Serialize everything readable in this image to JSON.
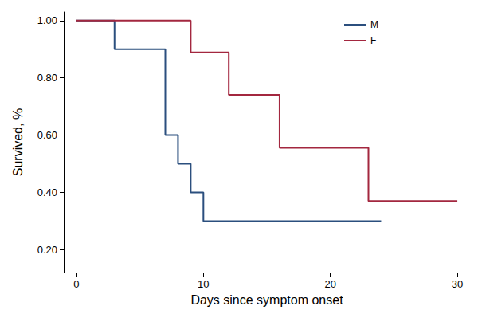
{
  "chart_data": {
    "type": "line",
    "line_style": "step",
    "x_label": "Days since symptom onset",
    "y_label": "Survived, %",
    "xlim": [
      -1,
      31
    ],
    "xticks": [
      0,
      10,
      20,
      30
    ],
    "ylim": [
      0.12,
      1.03
    ],
    "yticks": [
      {
        "value": 0.2,
        "label": "0.20"
      },
      {
        "value": 0.4,
        "label": "0.40"
      },
      {
        "value": 0.6,
        "label": "0.60"
      },
      {
        "value": 0.8,
        "label": "0.80"
      },
      {
        "value": 1,
        "label": "1.00"
      }
    ],
    "grid": false,
    "legend": "upper right",
    "series": [
      {
        "name": "M",
        "color": "#2b4f7e",
        "x": [
          0,
          3,
          7,
          8,
          9,
          10,
          24
        ],
        "values": [
          1.0,
          0.9,
          0.6,
          0.5,
          0.4,
          0.3,
          0.3
        ]
      },
      {
        "name": "F",
        "color": "#a3273f",
        "x": [
          0,
          9,
          12,
          16,
          23,
          30
        ],
        "values": [
          1.0,
          0.889,
          0.741,
          0.556,
          0.37,
          0.37
        ]
      }
    ]
  }
}
